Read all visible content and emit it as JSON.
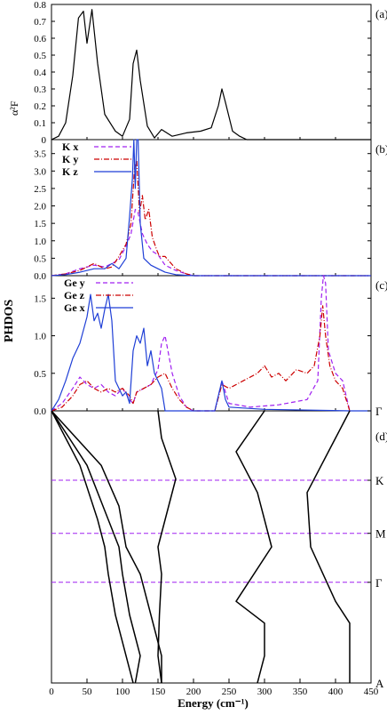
{
  "figure": {
    "panel_labels": [
      "(a)",
      "(b)",
      "(c)",
      "(d)"
    ],
    "ylabel_a": "α²F",
    "ylabel_bc": "PHDOS",
    "xlabel": "Energy (cm⁻¹)",
    "x_ticks": [
      "0",
      "50",
      "100",
      "150",
      "200",
      "250",
      "300",
      "350",
      "400",
      "450"
    ],
    "ticks_a": [
      "0",
      "0.1",
      "0.2",
      "0.3",
      "0.4",
      "0.5",
      "0.6",
      "0.7",
      "0.8"
    ],
    "ticks_b": [
      "0.0",
      "0.5",
      "1.0",
      "1.5",
      "2.0",
      "2.5",
      "3.0",
      "3.5"
    ],
    "ticks_c": [
      "0.0",
      "0.5",
      "1.0",
      "1.5"
    ],
    "kpoints": [
      "Γ",
      "K",
      "M",
      "Γ",
      "A"
    ],
    "legend_b": [
      "K x",
      "K y",
      "K z"
    ],
    "legend_c": [
      "Ge y",
      "Ge z",
      "Ge x"
    ],
    "colors": {
      "x": "#a020f0",
      "y": "#cc0000",
      "z": "#1f3fd6",
      "black": "#000000",
      "hsym": "#a020f0"
    }
  },
  "chart_data": [
    {
      "type": "line",
      "panel": "(a)",
      "ylabel": "α²F",
      "xlim": [
        0,
        450
      ],
      "ylim": [
        0,
        0.8
      ],
      "series": [
        {
          "x": [
            0,
            10,
            20,
            30,
            38,
            45,
            50,
            57,
            65,
            75,
            90,
            100,
            110,
            115,
            120,
            125,
            135,
            145,
            155,
            170,
            190,
            210,
            225,
            235,
            240,
            245,
            255,
            265,
            275,
            300,
            450
          ],
          "y": [
            0,
            0.02,
            0.1,
            0.38,
            0.72,
            0.76,
            0.57,
            0.77,
            0.45,
            0.15,
            0.05,
            0.02,
            0.12,
            0.45,
            0.53,
            0.35,
            0.08,
            0.01,
            0.06,
            0.02,
            0.04,
            0.05,
            0.07,
            0.2,
            0.3,
            0.22,
            0.05,
            0.02,
            0,
            0,
            0
          ]
        }
      ]
    },
    {
      "type": "line",
      "panel": "(b)",
      "xlim": [
        0,
        450
      ],
      "ylim": [
        0,
        3.9
      ],
      "series": [
        {
          "name": "K x",
          "x": [
            0,
            20,
            40,
            60,
            75,
            85,
            95,
            105,
            112,
            118,
            122,
            128,
            135,
            142,
            150,
            160,
            175,
            190,
            200,
            450
          ],
          "y": [
            0,
            0.05,
            0.2,
            0.3,
            0.25,
            0.35,
            0.45,
            0.85,
            1.2,
            1.9,
            1.8,
            1.2,
            0.9,
            0.7,
            0.6,
            0.3,
            0.15,
            0.05,
            0,
            0
          ]
        },
        {
          "name": "K y",
          "x": [
            0,
            20,
            40,
            60,
            75,
            85,
            95,
            105,
            112,
            117,
            120,
            124,
            128,
            132,
            137,
            142,
            148,
            152,
            160,
            175,
            190,
            200,
            450
          ],
          "y": [
            0,
            0.05,
            0.15,
            0.35,
            0.2,
            0.25,
            0.55,
            0.9,
            1.5,
            3.1,
            3.3,
            1.8,
            2.3,
            1.6,
            1.9,
            1.1,
            0.75,
            0.55,
            0.55,
            0.2,
            0.05,
            0,
            0
          ]
        },
        {
          "name": "K z",
          "x": [
            0,
            20,
            40,
            60,
            75,
            85,
            95,
            105,
            110,
            114,
            116,
            118,
            120,
            122,
            125,
            130,
            140,
            150,
            160,
            175,
            190,
            200,
            450
          ],
          "y": [
            0,
            0.03,
            0.1,
            0.2,
            0.2,
            0.35,
            0.2,
            0.5,
            1.7,
            2.8,
            3.9,
            2.5,
            3.9,
            3.9,
            1.5,
            0.5,
            0.3,
            0.2,
            0.1,
            0.03,
            0.01,
            0,
            0
          ]
        }
      ]
    },
    {
      "type": "line",
      "panel": "(c)",
      "xlim": [
        0,
        450
      ],
      "ylim": [
        0,
        1.8
      ],
      "series": [
        {
          "name": "Ge y",
          "x": [
            0,
            15,
            30,
            40,
            50,
            60,
            70,
            80,
            90,
            100,
            110,
            115,
            120,
            130,
            140,
            150,
            155,
            160,
            170,
            180,
            190,
            200,
            215,
            230,
            240,
            250,
            280,
            320,
            360,
            375,
            380,
            383,
            386,
            390,
            400,
            410,
            420
          ],
          "y": [
            0,
            0.1,
            0.3,
            0.45,
            0.35,
            0.3,
            0.35,
            0.25,
            0.2,
            0.3,
            0.15,
            0.1,
            0.25,
            0.3,
            0.35,
            0.55,
            0.9,
            1.0,
            0.5,
            0.2,
            0.05,
            0,
            0,
            0,
            0.4,
            0.1,
            0.05,
            0.08,
            0.15,
            0.4,
            1.5,
            1.8,
            1.7,
            0.8,
            0.5,
            0.4,
            0
          ]
        },
        {
          "name": "Ge z",
          "x": [
            0,
            15,
            30,
            40,
            50,
            60,
            70,
            80,
            90,
            100,
            110,
            115,
            120,
            130,
            140,
            150,
            160,
            170,
            180,
            190,
            200,
            215,
            230,
            240,
            250,
            270,
            290,
            300,
            310,
            320,
            330,
            345,
            360,
            370,
            378,
            382,
            386,
            392,
            400,
            410,
            420
          ],
          "y": [
            0,
            0.05,
            0.2,
            0.35,
            0.4,
            0.3,
            0.25,
            0.3,
            0.25,
            0.3,
            0.2,
            0.1,
            0.25,
            0.3,
            0.35,
            0.45,
            0.5,
            0.3,
            0.15,
            0.05,
            0,
            0,
            0,
            0.35,
            0.3,
            0.4,
            0.5,
            0.6,
            0.45,
            0.5,
            0.4,
            0.55,
            0.5,
            0.6,
            1.0,
            1.4,
            1.0,
            0.6,
            0.4,
            0.3,
            0
          ]
        },
        {
          "name": "Ge x",
          "x": [
            0,
            10,
            20,
            30,
            40,
            50,
            55,
            60,
            65,
            70,
            75,
            80,
            85,
            90,
            100,
            105,
            110,
            115,
            120,
            125,
            130,
            135,
            140,
            145,
            150,
            155,
            160,
            200,
            230,
            240,
            245,
            250,
            300,
            420,
            450
          ],
          "y": [
            0,
            0.15,
            0.4,
            0.7,
            0.9,
            1.25,
            1.55,
            1.2,
            1.3,
            1.1,
            1.35,
            1.55,
            1.2,
            0.4,
            0.2,
            0.25,
            0.1,
            0.8,
            1.0,
            0.9,
            1.1,
            0.6,
            0.8,
            0.5,
            0.4,
            0.3,
            0,
            0,
            0,
            0.4,
            0.15,
            0.05,
            0.02,
            0,
            0
          ]
        }
      ]
    },
    {
      "type": "line",
      "panel": "(d)",
      "xlim": [
        0,
        450
      ],
      "kpoints": [
        "Γ",
        "K",
        "M",
        "Γ",
        "A"
      ],
      "series": [
        {
          "name": "band1",
          "x": [
            0,
            40,
            65,
            75,
            80,
            90,
            100,
            115
          ],
          "y": [
            0,
            0.2,
            0.4,
            0.5,
            0.6,
            0.75,
            0.85,
            1
          ]
        },
        {
          "name": "band2",
          "x": [
            0,
            50,
            80,
            95,
            100,
            110,
            125,
            118
          ],
          "y": [
            0,
            0.2,
            0.4,
            0.5,
            0.6,
            0.75,
            0.9,
            1
          ]
        },
        {
          "name": "band3",
          "x": [
            0,
            70,
            95,
            105,
            125,
            140,
            155,
            155
          ],
          "y": [
            0,
            0.2,
            0.35,
            0.5,
            0.6,
            0.75,
            0.9,
            1
          ]
        },
        {
          "name": "band4",
          "x": [
            150,
            155,
            175,
            150,
            155,
            152,
            150,
            155
          ],
          "y": [
            0,
            0.1,
            0.25,
            0.5,
            0.6,
            0.75,
            0.9,
            1
          ]
        },
        {
          "name": "band5",
          "x": [
            300,
            260,
            290,
            310,
            260,
            300,
            300,
            290
          ],
          "y": [
            0,
            0.15,
            0.3,
            0.5,
            0.7,
            0.78,
            0.9,
            1
          ]
        },
        {
          "name": "band6",
          "x": [
            420,
            390,
            360,
            365,
            400,
            420,
            420,
            420
          ],
          "y": [
            0,
            0.15,
            0.3,
            0.5,
            0.7,
            0.78,
            0.9,
            1
          ]
        }
      ]
    }
  ]
}
